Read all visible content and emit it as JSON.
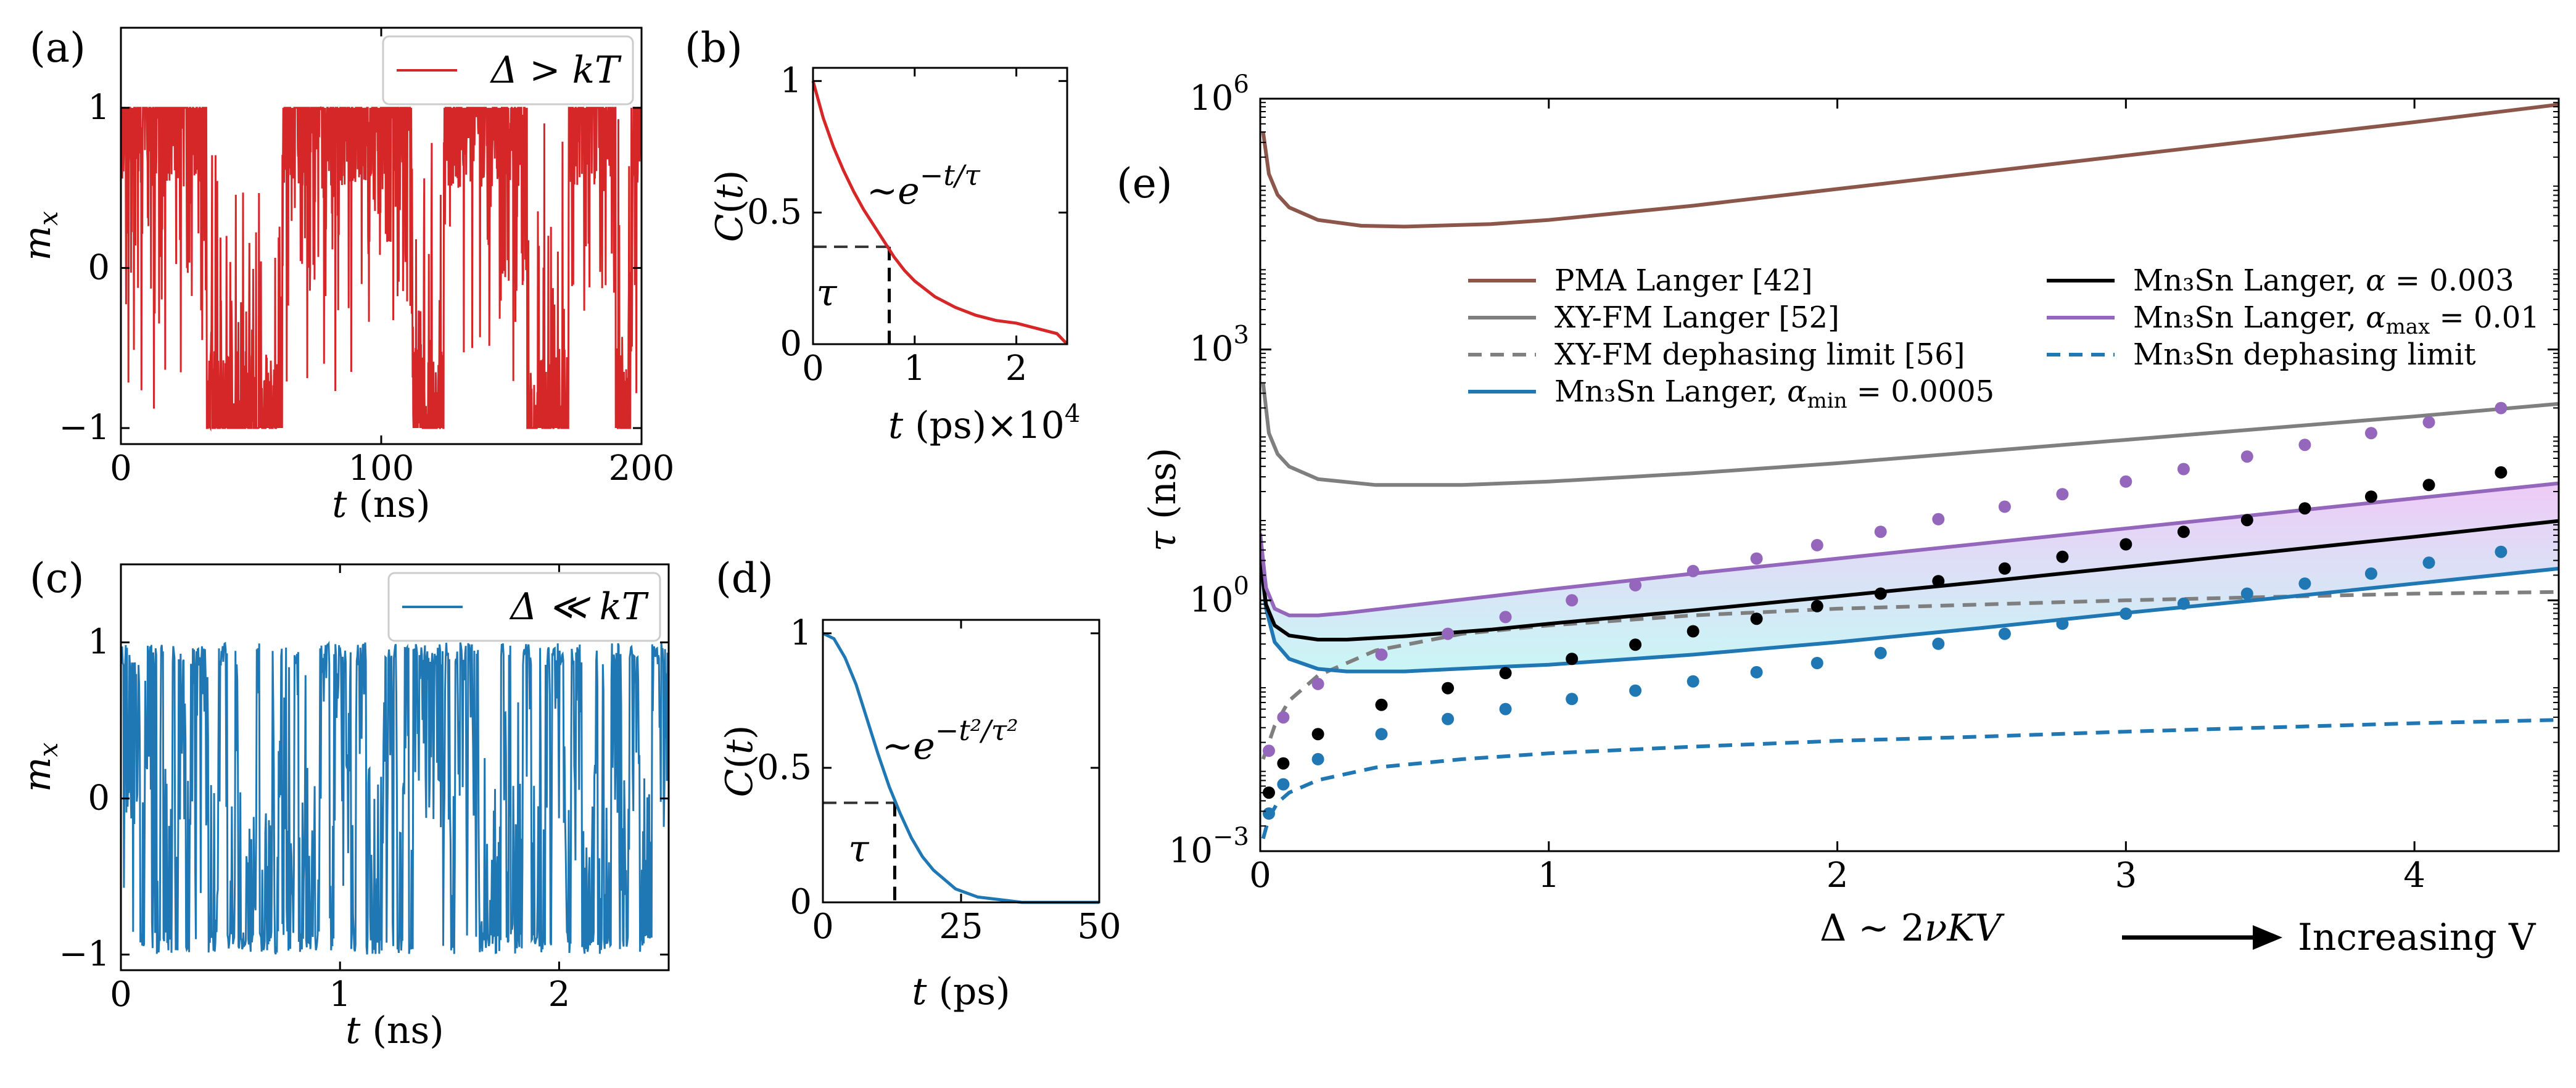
{
  "figure": {
    "panels": [
      {
        "id": "a",
        "tag": "(a)"
      },
      {
        "id": "b",
        "tag": "(b)"
      },
      {
        "id": "c",
        "tag": "(c)"
      },
      {
        "id": "d",
        "tag": "(d)"
      },
      {
        "id": "e",
        "tag": "(e)"
      }
    ],
    "colors": {
      "red": "#d62728",
      "blue": "#1f77b4",
      "brown": "#8c564b",
      "gray": "#7f7f7f",
      "purple": "#9467bd",
      "black": "#000000",
      "dash_gray": "#7f7f7f"
    }
  },
  "chart_data": [
    {
      "panel": "a",
      "type": "line",
      "title": "",
      "xlabel": "t (ns)",
      "ylabel": "m_x",
      "xlim": [
        0,
        200
      ],
      "ylim": [
        -1.1,
        1.5
      ],
      "xticks": [
        "0",
        "100",
        "200"
      ],
      "yticks": [
        "1",
        "0",
        "-1"
      ],
      "legend": {
        "label": "Δ > kT",
        "placement": "top-right"
      },
      "series": [
        {
          "name": "m_x",
          "color": "#d62728",
          "description": "telegraph switching between +1 and -1 with noise; -1 intervals approx 33-62, 112-124, 156-172, 190-196 ns"
        }
      ],
      "state_intervals_minus1": [
        [
          33,
          62
        ],
        [
          112,
          124
        ],
        [
          156,
          172
        ],
        [
          190,
          196
        ]
      ]
    },
    {
      "panel": "b",
      "type": "line",
      "xlabel": "t (ps)×10^4",
      "ylabel": "C(t)",
      "xlim": [
        0,
        2.5
      ],
      "ylim": [
        0,
        1.05
      ],
      "xticks": [
        "0",
        "1",
        "2"
      ],
      "yticks": [
        "0",
        "0.5",
        "1"
      ],
      "annotation": "~e^{-t/τ}",
      "tau_label": "τ",
      "tau": 0.75,
      "tau_level": 0.37,
      "x": [
        0,
        0.1,
        0.2,
        0.3,
        0.4,
        0.5,
        0.6,
        0.7,
        0.8,
        0.9,
        1.0,
        1.2,
        1.4,
        1.6,
        1.8,
        2.0,
        2.2,
        2.4,
        2.5
      ],
      "values": [
        1.0,
        0.86,
        0.75,
        0.66,
        0.58,
        0.51,
        0.45,
        0.39,
        0.33,
        0.28,
        0.24,
        0.18,
        0.14,
        0.11,
        0.09,
        0.08,
        0.06,
        0.04,
        0.0
      ]
    },
    {
      "panel": "c",
      "type": "line",
      "xlabel": "t (ns)",
      "ylabel": "m_x",
      "xlim": [
        0,
        2.5
      ],
      "ylim": [
        -1.1,
        1.5
      ],
      "xticks": [
        "0",
        "1",
        "2"
      ],
      "yticks": [
        "1",
        "0",
        "-1"
      ],
      "legend": {
        "label": "Δ ≪ kT",
        "placement": "top-right"
      },
      "series": [
        {
          "name": "m_x",
          "color": "#1f77b4",
          "description": "rapid fluctuations between -1 and +1"
        }
      ]
    },
    {
      "panel": "d",
      "type": "line",
      "xlabel": "t (ps)",
      "ylabel": "C(t)",
      "xlim": [
        0,
        50
      ],
      "ylim": [
        0,
        1.05
      ],
      "xticks": [
        "0",
        "25",
        "50"
      ],
      "yticks": [
        "0",
        "0.5",
        "1"
      ],
      "annotation": "~e^{-t²/τ²}",
      "tau_label": "τ",
      "tau": 13,
      "tau_level": 0.37,
      "x": [
        0,
        2,
        4,
        6,
        8,
        10,
        12,
        14,
        16,
        18,
        20,
        24,
        28,
        32,
        36,
        40,
        45,
        50
      ],
      "values": [
        1.0,
        0.98,
        0.91,
        0.81,
        0.68,
        0.55,
        0.43,
        0.33,
        0.24,
        0.17,
        0.12,
        0.05,
        0.02,
        0.01,
        0.0,
        0.0,
        0.0,
        0.0
      ]
    },
    {
      "panel": "e",
      "type": "line",
      "xlabel": "Δ ~ 2νKV",
      "ylabel": "τ (ns)",
      "yscale": "log",
      "xlim": [
        0,
        4.5
      ],
      "ylim_log10": [
        -3,
        6
      ],
      "xticks": [
        "0",
        "1",
        "2",
        "3",
        "4"
      ],
      "yticks": [
        {
          "base": "10",
          "exp": "−3",
          "log10": -3
        },
        {
          "base": "10",
          "exp": "0",
          "log10": 0
        },
        {
          "base": "10",
          "exp": "3",
          "log10": 3
        },
        {
          "base": "10",
          "exp": "6",
          "log10": 6
        }
      ],
      "arrow_label": "Increasing V",
      "legend": [
        {
          "label": "PMA Langer [42]",
          "color": "#8c564b",
          "style": "solid"
        },
        {
          "label": "XY-FM Langer [52]",
          "color": "#7f7f7f",
          "style": "solid"
        },
        {
          "label": "XY-FM dephasing limit [56]",
          "color": "#7f7f7f",
          "style": "dashed"
        },
        {
          "label": "Mn₃Sn Langer, α_min = 0.0005",
          "color": "#1f77b4",
          "style": "solid"
        },
        {
          "label": "Mn₃Sn Langer, α = 0.003",
          "color": "#000000",
          "style": "solid"
        },
        {
          "label": "Mn₃Sn Langer, α_max = 0.01",
          "color": "#9467bd",
          "style": "solid"
        },
        {
          "label": "Mn₃Sn dephasing limit",
          "color": "#1f77b4",
          "style": "dashed"
        }
      ],
      "series": [
        {
          "name": "PMA Langer [42]",
          "x": [
            0.01,
            0.03,
            0.06,
            0.1,
            0.2,
            0.35,
            0.5,
            0.8,
            1.0,
            1.5,
            2.0,
            2.5,
            3.0,
            3.5,
            4.0,
            4.5
          ],
          "log10_values": [
            5.6,
            5.1,
            4.85,
            4.7,
            4.55,
            4.48,
            4.47,
            4.5,
            4.55,
            4.72,
            4.92,
            5.12,
            5.32,
            5.52,
            5.72,
            5.93
          ]
        },
        {
          "name": "XY-FM Langer [52]",
          "x": [
            0.01,
            0.03,
            0.06,
            0.1,
            0.2,
            0.4,
            0.7,
            1.0,
            1.5,
            2.0,
            2.5,
            3.0,
            3.5,
            4.0,
            4.5
          ],
          "log10_values": [
            2.6,
            2.0,
            1.75,
            1.6,
            1.45,
            1.38,
            1.38,
            1.42,
            1.52,
            1.64,
            1.78,
            1.92,
            2.06,
            2.2,
            2.35
          ]
        },
        {
          "name": "XY-FM dephasing limit [56]",
          "x": [
            0.01,
            0.05,
            0.1,
            0.2,
            0.4,
            0.7,
            1.0,
            1.5,
            2.0,
            2.5,
            3.0,
            3.5,
            4.0,
            4.5
          ],
          "log10_values": [
            -1.9,
            -1.5,
            -1.2,
            -0.9,
            -0.6,
            -0.4,
            -0.3,
            -0.18,
            -0.1,
            -0.05,
            0.0,
            0.04,
            0.08,
            0.1
          ]
        },
        {
          "name": "Mn₃Sn Langer, α_min = 0.0005",
          "x": [
            0.0,
            0.02,
            0.05,
            0.1,
            0.2,
            0.3,
            0.5,
            0.8,
            1.0,
            1.5,
            2.0,
            2.5,
            3.0,
            3.5,
            4.0,
            4.5
          ],
          "log10_values": [
            0.5,
            -0.1,
            -0.5,
            -0.7,
            -0.82,
            -0.85,
            -0.85,
            -0.8,
            -0.77,
            -0.65,
            -0.5,
            -0.33,
            -0.15,
            0.02,
            0.2,
            0.38
          ]
        },
        {
          "name": "Mn₃Sn Langer, α = 0.003",
          "x": [
            0.0,
            0.02,
            0.05,
            0.1,
            0.2,
            0.3,
            0.5,
            0.8,
            1.0,
            1.5,
            2.0,
            2.5,
            3.0,
            3.5,
            4.0,
            4.5
          ],
          "log10_values": [
            0.5,
            -0.05,
            -0.3,
            -0.42,
            -0.47,
            -0.47,
            -0.43,
            -0.35,
            -0.28,
            -0.12,
            0.05,
            0.22,
            0.4,
            0.58,
            0.76,
            0.95
          ]
        },
        {
          "name": "Mn₃Sn Langer, α_max = 0.01",
          "x": [
            0.0,
            0.02,
            0.05,
            0.1,
            0.2,
            0.3,
            0.5,
            0.8,
            1.0,
            1.5,
            2.0,
            2.5,
            3.0,
            3.5,
            4.0,
            4.5
          ],
          "log10_values": [
            0.8,
            0.15,
            -0.1,
            -0.18,
            -0.18,
            -0.15,
            -0.07,
            0.05,
            0.13,
            0.32,
            0.5,
            0.68,
            0.86,
            1.04,
            1.22,
            1.4
          ]
        },
        {
          "name": "Mn₃Sn dephasing limit",
          "x": [
            0.01,
            0.03,
            0.06,
            0.1,
            0.2,
            0.4,
            0.7,
            1.0,
            1.5,
            2.0,
            2.5,
            3.0,
            3.5,
            4.0,
            4.5
          ],
          "log10_values": [
            -2.85,
            -2.6,
            -2.42,
            -2.3,
            -2.15,
            -2.0,
            -1.9,
            -1.83,
            -1.75,
            -1.68,
            -1.63,
            -1.57,
            -1.52,
            -1.47,
            -1.43
          ]
        }
      ],
      "scatter": [
        {
          "name": "purple points",
          "color": "#9467bd",
          "x": [
            0.03,
            0.08,
            0.2,
            0.42,
            0.65,
            0.85,
            1.08,
            1.3,
            1.5,
            1.72,
            1.93,
            2.15,
            2.35,
            2.58,
            2.78,
            3.0,
            3.2,
            3.42,
            3.62,
            3.85,
            4.05,
            4.3
          ],
          "log10_values": [
            -1.8,
            -1.4,
            -1.0,
            -0.65,
            -0.4,
            -0.2,
            0.0,
            0.18,
            0.35,
            0.5,
            0.66,
            0.82,
            0.97,
            1.12,
            1.27,
            1.42,
            1.57,
            1.72,
            1.86,
            2.0,
            2.13,
            2.3
          ]
        },
        {
          "name": "black points",
          "color": "#000000",
          "x": [
            0.03,
            0.08,
            0.2,
            0.42,
            0.65,
            0.85,
            1.08,
            1.3,
            1.5,
            1.72,
            1.93,
            2.15,
            2.35,
            2.58,
            2.78,
            3.0,
            3.2,
            3.42,
            3.62,
            3.85,
            4.05,
            4.3
          ],
          "log10_values": [
            -2.3,
            -1.95,
            -1.6,
            -1.25,
            -1.05,
            -0.87,
            -0.7,
            -0.53,
            -0.37,
            -0.22,
            -0.07,
            0.08,
            0.23,
            0.38,
            0.52,
            0.67,
            0.82,
            0.96,
            1.1,
            1.24,
            1.38,
            1.53
          ]
        },
        {
          "name": "blue points",
          "color": "#1f77b4",
          "x": [
            0.03,
            0.08,
            0.2,
            0.42,
            0.65,
            0.85,
            1.08,
            1.3,
            1.5,
            1.72,
            1.93,
            2.15,
            2.35,
            2.58,
            2.78,
            3.0,
            3.2,
            3.42,
            3.62,
            3.85,
            4.05,
            4.3
          ],
          "log10_values": [
            -2.55,
            -2.2,
            -1.9,
            -1.6,
            -1.42,
            -1.3,
            -1.18,
            -1.08,
            -0.97,
            -0.86,
            -0.75,
            -0.63,
            -0.52,
            -0.4,
            -0.28,
            -0.16,
            -0.04,
            0.08,
            0.2,
            0.32,
            0.45,
            0.58
          ]
        }
      ]
    }
  ]
}
